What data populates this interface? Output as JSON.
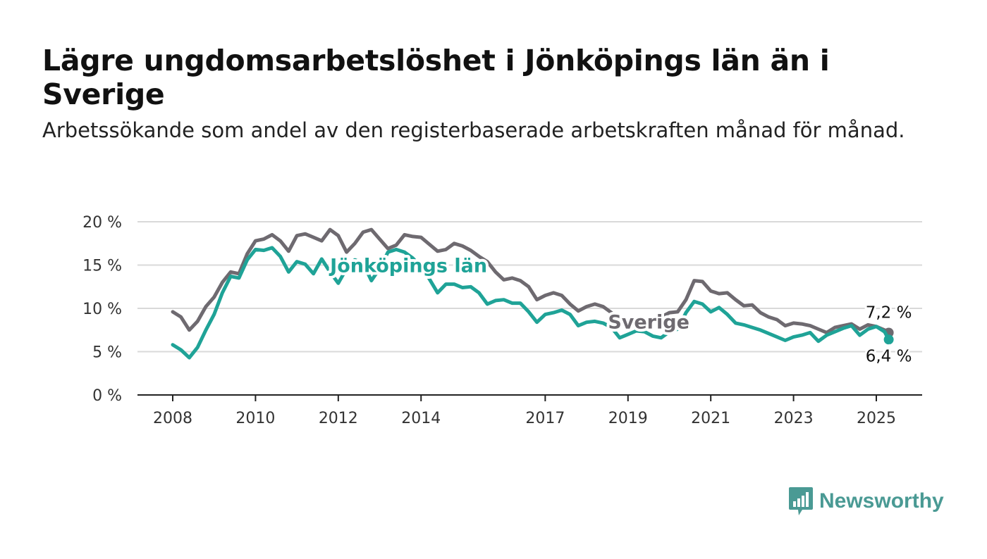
{
  "title": "Lägre ungdomsarbetslöshet i Jönköpings län än i Sverige",
  "subtitle": "Arbetssökande som andel av den registerbaserade arbetskraften månad för månad.",
  "brand": {
    "name": "Newsworthy",
    "color": "#4a9a94",
    "icon": "bar-chart-speech-bubble-icon"
  },
  "chart_data": {
    "type": "line",
    "x_range": [
      2008,
      2025.3
    ],
    "ylim": [
      0,
      20
    ],
    "y_ticks": [
      "0 %",
      "5 %",
      "10 %",
      "15 %",
      "20 %"
    ],
    "y_tick_values": [
      0,
      5,
      10,
      15,
      20
    ],
    "x_ticks": [
      "2008",
      "2010",
      "2012",
      "2014",
      "2017",
      "2019",
      "2021",
      "2023",
      "2025"
    ],
    "x_tick_values": [
      2008,
      2010,
      2012,
      2014,
      2017,
      2019,
      2021,
      2023,
      2025
    ],
    "grid": true,
    "series": [
      {
        "name": "Sverige",
        "color": "#6e6a70",
        "end_label": "7,2 %",
        "points": [
          [
            2008.0,
            9.6
          ],
          [
            2008.2,
            9.0
          ],
          [
            2008.4,
            7.5
          ],
          [
            2008.6,
            8.5
          ],
          [
            2008.8,
            10.2
          ],
          [
            2009.0,
            11.3
          ],
          [
            2009.2,
            13.0
          ],
          [
            2009.4,
            14.2
          ],
          [
            2009.6,
            14.0
          ],
          [
            2009.8,
            16.3
          ],
          [
            2010.0,
            17.8
          ],
          [
            2010.2,
            18.0
          ],
          [
            2010.4,
            18.5
          ],
          [
            2010.6,
            17.8
          ],
          [
            2010.8,
            16.6
          ],
          [
            2011.0,
            18.4
          ],
          [
            2011.2,
            18.6
          ],
          [
            2011.4,
            18.2
          ],
          [
            2011.6,
            17.8
          ],
          [
            2011.8,
            19.1
          ],
          [
            2012.0,
            18.4
          ],
          [
            2012.2,
            16.5
          ],
          [
            2012.4,
            17.5
          ],
          [
            2012.6,
            18.8
          ],
          [
            2012.8,
            19.1
          ],
          [
            2013.0,
            18.0
          ],
          [
            2013.2,
            16.9
          ],
          [
            2013.4,
            17.3
          ],
          [
            2013.6,
            18.5
          ],
          [
            2013.8,
            18.3
          ],
          [
            2014.0,
            18.2
          ],
          [
            2014.2,
            17.4
          ],
          [
            2014.4,
            16.6
          ],
          [
            2014.6,
            16.8
          ],
          [
            2014.8,
            17.5
          ],
          [
            2015.0,
            17.2
          ],
          [
            2015.2,
            16.7
          ],
          [
            2015.4,
            16.0
          ],
          [
            2015.6,
            15.4
          ],
          [
            2015.8,
            14.2
          ],
          [
            2016.0,
            13.3
          ],
          [
            2016.2,
            13.5
          ],
          [
            2016.4,
            13.2
          ],
          [
            2016.6,
            12.5
          ],
          [
            2016.8,
            11.0
          ],
          [
            2017.0,
            11.5
          ],
          [
            2017.2,
            11.8
          ],
          [
            2017.4,
            11.5
          ],
          [
            2017.6,
            10.5
          ],
          [
            2017.8,
            9.7
          ],
          [
            2018.0,
            10.2
          ],
          [
            2018.2,
            10.5
          ],
          [
            2018.4,
            10.2
          ],
          [
            2018.6,
            9.5
          ],
          [
            2018.8,
            8.7
          ],
          [
            2019.0,
            8.0
          ],
          [
            2019.2,
            8.1
          ],
          [
            2019.4,
            8.3
          ],
          [
            2019.6,
            8.7
          ],
          [
            2019.8,
            9.0
          ],
          [
            2020.0,
            9.5
          ],
          [
            2020.2,
            9.6
          ],
          [
            2020.4,
            11.0
          ],
          [
            2020.6,
            13.2
          ],
          [
            2020.8,
            13.1
          ],
          [
            2021.0,
            12.0
          ],
          [
            2021.2,
            11.7
          ],
          [
            2021.4,
            11.8
          ],
          [
            2021.6,
            11.0
          ],
          [
            2021.8,
            10.3
          ],
          [
            2022.0,
            10.4
          ],
          [
            2022.2,
            9.5
          ],
          [
            2022.4,
            9.0
          ],
          [
            2022.6,
            8.7
          ],
          [
            2022.8,
            8.0
          ],
          [
            2023.0,
            8.3
          ],
          [
            2023.2,
            8.2
          ],
          [
            2023.4,
            8.0
          ],
          [
            2023.6,
            7.6
          ],
          [
            2023.8,
            7.2
          ],
          [
            2024.0,
            7.8
          ],
          [
            2024.2,
            8.0
          ],
          [
            2024.4,
            8.2
          ],
          [
            2024.6,
            7.6
          ],
          [
            2024.8,
            8.1
          ],
          [
            2025.0,
            7.9
          ],
          [
            2025.2,
            7.5
          ],
          [
            2025.3,
            7.2
          ]
        ]
      },
      {
        "name": "Jönköpings län",
        "color": "#1fa397",
        "end_label": "6,4 %",
        "points": [
          [
            2008.0,
            5.8
          ],
          [
            2008.2,
            5.2
          ],
          [
            2008.4,
            4.3
          ],
          [
            2008.6,
            5.5
          ],
          [
            2008.8,
            7.5
          ],
          [
            2009.0,
            9.3
          ],
          [
            2009.2,
            11.8
          ],
          [
            2009.4,
            13.7
          ],
          [
            2009.6,
            13.5
          ],
          [
            2009.8,
            15.6
          ],
          [
            2010.0,
            16.8
          ],
          [
            2010.2,
            16.7
          ],
          [
            2010.4,
            17.0
          ],
          [
            2010.6,
            16.0
          ],
          [
            2010.8,
            14.2
          ],
          [
            2011.0,
            15.4
          ],
          [
            2011.2,
            15.1
          ],
          [
            2011.4,
            14.0
          ],
          [
            2011.6,
            15.7
          ],
          [
            2011.8,
            14.2
          ],
          [
            2012.0,
            12.9
          ],
          [
            2012.2,
            14.6
          ],
          [
            2012.4,
            15.6
          ],
          [
            2012.6,
            15.2
          ],
          [
            2012.8,
            13.2
          ],
          [
            2013.0,
            14.6
          ],
          [
            2013.2,
            16.5
          ],
          [
            2013.4,
            16.8
          ],
          [
            2013.6,
            16.5
          ],
          [
            2013.8,
            15.8
          ],
          [
            2014.0,
            14.8
          ],
          [
            2014.2,
            13.4
          ],
          [
            2014.4,
            11.8
          ],
          [
            2014.6,
            12.8
          ],
          [
            2014.8,
            12.8
          ],
          [
            2015.0,
            12.4
          ],
          [
            2015.2,
            12.5
          ],
          [
            2015.4,
            11.8
          ],
          [
            2015.6,
            10.5
          ],
          [
            2015.8,
            10.9
          ],
          [
            2016.0,
            11.0
          ],
          [
            2016.2,
            10.6
          ],
          [
            2016.4,
            10.6
          ],
          [
            2016.6,
            9.6
          ],
          [
            2016.8,
            8.4
          ],
          [
            2017.0,
            9.3
          ],
          [
            2017.2,
            9.5
          ],
          [
            2017.4,
            9.8
          ],
          [
            2017.6,
            9.3
          ],
          [
            2017.8,
            8.0
          ],
          [
            2018.0,
            8.4
          ],
          [
            2018.2,
            8.5
          ],
          [
            2018.4,
            8.3
          ],
          [
            2018.6,
            7.8
          ],
          [
            2018.8,
            6.6
          ],
          [
            2019.0,
            7.0
          ],
          [
            2019.2,
            7.4
          ],
          [
            2019.4,
            7.3
          ],
          [
            2019.6,
            6.8
          ],
          [
            2019.8,
            6.6
          ],
          [
            2020.0,
            7.3
          ],
          [
            2020.2,
            7.6
          ],
          [
            2020.4,
            9.5
          ],
          [
            2020.6,
            10.8
          ],
          [
            2020.8,
            10.5
          ],
          [
            2021.0,
            9.6
          ],
          [
            2021.2,
            10.1
          ],
          [
            2021.4,
            9.3
          ],
          [
            2021.6,
            8.3
          ],
          [
            2021.8,
            8.1
          ],
          [
            2022.0,
            7.8
          ],
          [
            2022.2,
            7.5
          ],
          [
            2022.4,
            7.1
          ],
          [
            2022.6,
            6.7
          ],
          [
            2022.8,
            6.3
          ],
          [
            2023.0,
            6.7
          ],
          [
            2023.2,
            6.9
          ],
          [
            2023.4,
            7.2
          ],
          [
            2023.6,
            6.2
          ],
          [
            2023.8,
            6.9
          ],
          [
            2024.0,
            7.3
          ],
          [
            2024.2,
            7.7
          ],
          [
            2024.4,
            8.0
          ],
          [
            2024.6,
            6.9
          ],
          [
            2024.8,
            7.6
          ],
          [
            2025.0,
            7.9
          ],
          [
            2025.2,
            7.3
          ],
          [
            2025.3,
            6.4
          ]
        ]
      }
    ]
  }
}
